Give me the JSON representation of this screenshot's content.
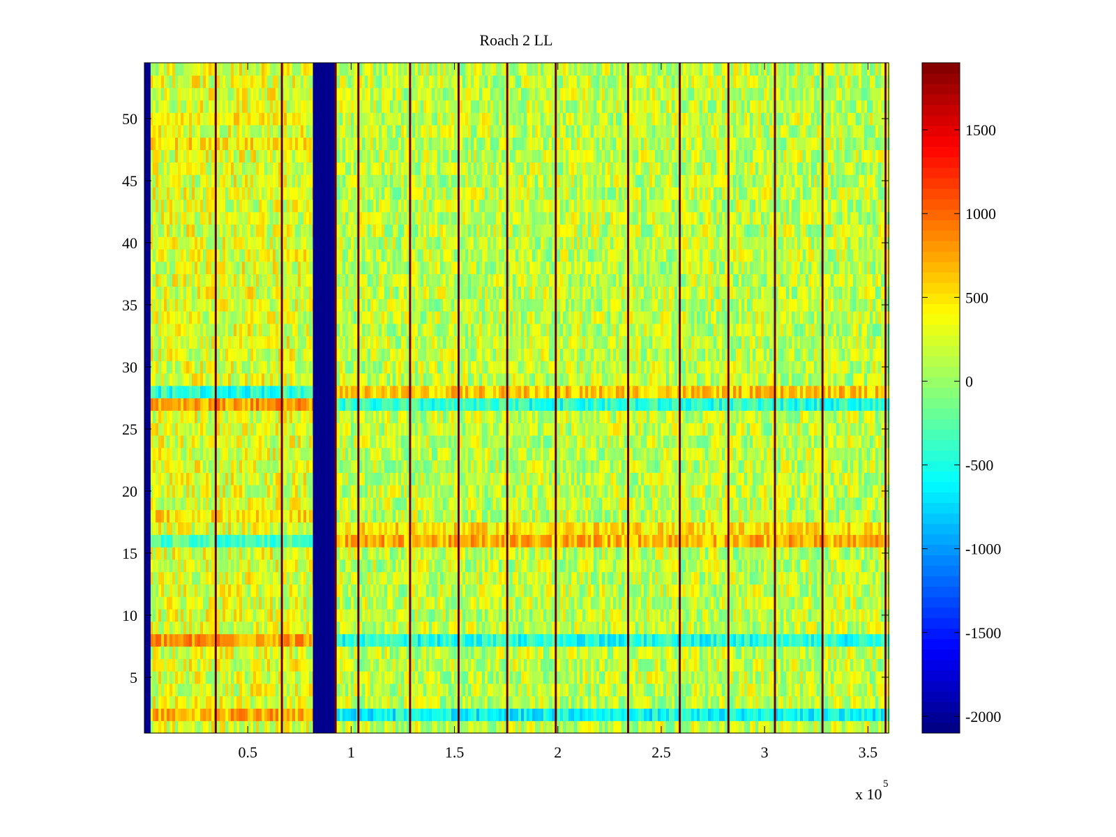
{
  "chart_data": {
    "type": "heatmap",
    "title": "Roach 2 LL",
    "xlabel": "",
    "ylabel": "",
    "x_exponent_label": "x 10",
    "x_exponent_power": "5",
    "xlim": [
      0,
      3.6
    ],
    "ylim": [
      0.5,
      54.5
    ],
    "rows": 54,
    "x_ticks": [
      {
        "value": 0.5,
        "label": "0.5"
      },
      {
        "value": 1,
        "label": "1"
      },
      {
        "value": 1.5,
        "label": "1.5"
      },
      {
        "value": 2,
        "label": "2"
      },
      {
        "value": 2.5,
        "label": "2.5"
      },
      {
        "value": 3,
        "label": "3"
      },
      {
        "value": 3.5,
        "label": "3.5"
      }
    ],
    "y_ticks": [
      {
        "value": 5,
        "label": "5"
      },
      {
        "value": 10,
        "label": "10"
      },
      {
        "value": 15,
        "label": "15"
      },
      {
        "value": 20,
        "label": "20"
      },
      {
        "value": 25,
        "label": "25"
      },
      {
        "value": 30,
        "label": "30"
      },
      {
        "value": 35,
        "label": "35"
      },
      {
        "value": 40,
        "label": "40"
      },
      {
        "value": 45,
        "label": "45"
      },
      {
        "value": 50,
        "label": "50"
      }
    ],
    "colorbar": {
      "colormap": "jet",
      "clim": [
        -2100,
        1900
      ],
      "ticks": [
        {
          "value": 1500,
          "label": "1500"
        },
        {
          "value": 1000,
          "label": "1000"
        },
        {
          "value": 500,
          "label": "500"
        },
        {
          "value": 0,
          "label": "0"
        },
        {
          "value": -500,
          "label": "-500"
        },
        {
          "value": -1000,
          "label": "-1000"
        },
        {
          "value": -1500,
          "label": "-1500"
        },
        {
          "value": -2000,
          "label": "-2000"
        }
      ]
    },
    "background_level": 150,
    "min_blocks": [
      {
        "x_start": 0.0,
        "x_end": 0.03,
        "value": -2050
      },
      {
        "x_start": 0.815,
        "x_end": 0.925,
        "value": -2050
      }
    ],
    "stripe_lines_x": [
      0.345,
      0.665,
      0.925,
      1.035,
      1.285,
      1.52,
      1.755,
      1.99,
      2.34,
      2.59,
      2.825,
      3.05,
      3.28,
      3.585
    ],
    "stripe_value": 1850,
    "row_bias": [
      {
        "row": 2,
        "segment": "left",
        "value": 700
      },
      {
        "row": 2,
        "segment": "right",
        "value": -600
      },
      {
        "row": 8,
        "segment": "left",
        "value": 800
      },
      {
        "row": 8,
        "segment": "right",
        "value": -500
      },
      {
        "row": 16,
        "segment": "left",
        "value": -300
      },
      {
        "row": 16,
        "segment": "right",
        "value": 700
      },
      {
        "row": 17,
        "segment": "right",
        "value": 500
      },
      {
        "row": 18,
        "segment": "left",
        "value": 500
      },
      {
        "row": 27,
        "segment": "left",
        "value": 800
      },
      {
        "row": 27,
        "segment": "right",
        "value": -450
      },
      {
        "row": 28,
        "segment": "left",
        "value": -450
      },
      {
        "row": 28,
        "segment": "right",
        "value": 600
      },
      {
        "row": 50,
        "segment": "left",
        "value": 450
      },
      {
        "row": 48,
        "segment": "left",
        "value": 500
      }
    ]
  }
}
